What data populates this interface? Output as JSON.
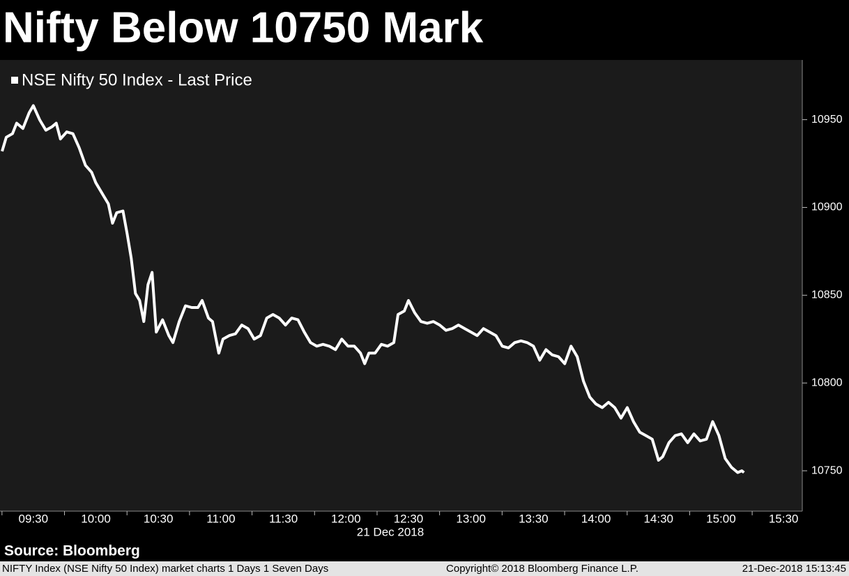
{
  "chart_data": {
    "type": "line",
    "title": "Nifty Below 10750 Mark",
    "xlabel": "21 Dec 2018",
    "source": "Source: Bloomberg",
    "x": [
      "09:15",
      "09:17",
      "09:20",
      "09:22",
      "09:25",
      "09:28",
      "09:30",
      "09:33",
      "09:36",
      "09:39",
      "09:41",
      "09:43",
      "09:46",
      "09:49",
      "09:52",
      "09:55",
      "09:58",
      "10:00",
      "10:03",
      "10:06",
      "10:08",
      "10:10",
      "10:13",
      "10:15",
      "10:17",
      "10:19",
      "10:21",
      "10:23",
      "10:25",
      "10:27",
      "10:29",
      "10:32",
      "10:35",
      "10:37",
      "10:40",
      "10:43",
      "10:46",
      "10:49",
      "10:51",
      "10:54",
      "10:56",
      "10:59",
      "11:01",
      "11:04",
      "11:07",
      "11:10",
      "11:13",
      "11:16",
      "11:19",
      "11:22",
      "11:25",
      "11:28",
      "11:31",
      "11:34",
      "11:37",
      "11:40",
      "11:43",
      "11:46",
      "11:49",
      "11:52",
      "11:55",
      "11:58",
      "12:01",
      "12:04",
      "12:07",
      "12:09",
      "12:11",
      "12:14",
      "12:17",
      "12:20",
      "12:23",
      "12:25",
      "12:28",
      "12:30",
      "12:33",
      "12:36",
      "12:39",
      "12:42",
      "12:45",
      "12:48",
      "12:51",
      "12:54",
      "12:57",
      "13:00",
      "13:03",
      "13:06",
      "13:09",
      "13:12",
      "13:15",
      "13:18",
      "13:21",
      "13:24",
      "13:27",
      "13:30",
      "13:33",
      "13:36",
      "13:39",
      "13:42",
      "13:45",
      "13:48",
      "13:51",
      "13:54",
      "13:57",
      "14:00",
      "14:03",
      "14:06",
      "14:09",
      "14:12",
      "14:15",
      "14:18",
      "14:21",
      "14:24",
      "14:27",
      "14:30",
      "14:32",
      "14:35",
      "14:38",
      "14:41",
      "14:44",
      "14:47",
      "14:50",
      "14:53",
      "14:56",
      "14:59",
      "15:02",
      "15:05",
      "15:08",
      "15:10",
      "15:11"
    ],
    "series": [
      {
        "name": "NSE Nifty 50 Index - Last Price",
        "color": "#ffffff",
        "values": [
          10932,
          10940,
          10942,
          10948,
          10945,
          10954,
          10958,
          10950,
          10944,
          10946,
          10948,
          10939,
          10943,
          10942,
          10934,
          10924,
          10920,
          10914,
          10908,
          10902,
          10891,
          10897,
          10898,
          10885,
          10871,
          10851,
          10847,
          10835,
          10856,
          10863,
          10829,
          10836,
          10827,
          10823,
          10835,
          10844,
          10843,
          10843,
          10847,
          10837,
          10835,
          10817,
          10825,
          10827,
          10828,
          10833,
          10831,
          10825,
          10827,
          10837,
          10839,
          10837,
          10833,
          10837,
          10836,
          10829,
          10823,
          10821,
          10822,
          10821,
          10819,
          10825,
          10821,
          10821,
          10817,
          10811,
          10817,
          10817,
          10822,
          10821,
          10823,
          10839,
          10841,
          10847,
          10840,
          10835,
          10834,
          10835,
          10833,
          10830,
          10831,
          10833,
          10831,
          10829,
          10827,
          10831,
          10829,
          10827,
          10821,
          10820,
          10823,
          10824,
          10823,
          10821,
          10813,
          10819,
          10816,
          10815,
          10811,
          10821,
          10815,
          10801,
          10792,
          10788,
          10786,
          10789,
          10786,
          10780,
          10786,
          10778,
          10772,
          10770,
          10768,
          10756,
          10758,
          10766,
          10770,
          10771,
          10766,
          10771,
          10767,
          10768,
          10778,
          10770,
          10757,
          10752,
          10749,
          10750,
          10749
        ]
      }
    ],
    "xlim": [
      "09:14",
      "15:39"
    ],
    "xticks": [
      "09:30",
      "10:00",
      "10:30",
      "11:00",
      "11:30",
      "12:00",
      "12:30",
      "13:00",
      "13:30",
      "14:00",
      "14:30",
      "15:00",
      "15:30"
    ],
    "ylim": [
      10727,
      10984
    ],
    "yticks": [
      10750,
      10800,
      10850,
      10900,
      10950
    ]
  },
  "footer": {
    "left": "NIFTY Index (NSE Nifty 50 Index) market charts 1 Days 1 Seven Days",
    "center": "Copyright© 2018 Bloomberg Finance L.P.",
    "right": "21-Dec-2018 15:13:45"
  }
}
